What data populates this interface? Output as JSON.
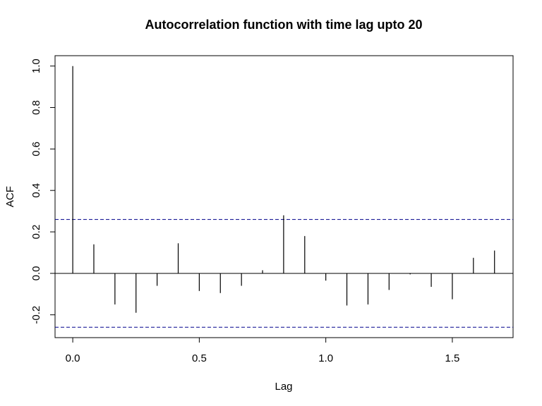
{
  "chart_data": {
    "type": "bar",
    "title": "Autocorrelation function with time lag upto 20",
    "xlabel": "Lag",
    "ylabel": "ACF",
    "xlim": [
      -0.07,
      1.74
    ],
    "ylim": [
      -0.31,
      1.05
    ],
    "x_ticks": [
      0.0,
      0.5,
      1.0,
      1.5
    ],
    "x_tick_labels": [
      "0.0",
      "0.5",
      "1.0",
      "1.5"
    ],
    "y_ticks": [
      -0.2,
      0.0,
      0.2,
      0.4,
      0.6,
      0.8,
      1.0
    ],
    "y_tick_labels": [
      "-0.2",
      "0.0",
      "0.2",
      "0.4",
      "0.6",
      "0.8",
      "1.0"
    ],
    "lags": [
      0.0,
      0.0833,
      0.1667,
      0.25,
      0.3333,
      0.4167,
      0.5,
      0.5833,
      0.6667,
      0.75,
      0.8333,
      0.9167,
      1.0,
      1.0833,
      1.1667,
      1.25,
      1.3333,
      1.4167,
      1.5,
      1.5833,
      1.6667
    ],
    "acf": [
      1.0,
      0.14,
      -0.15,
      -0.19,
      -0.06,
      0.145,
      -0.085,
      -0.095,
      -0.06,
      0.015,
      0.28,
      0.18,
      -0.035,
      -0.155,
      -0.15,
      -0.08,
      -0.005,
      -0.065,
      -0.125,
      0.075,
      0.11
    ],
    "confidence_bounds": [
      0.26,
      -0.26
    ],
    "grid": false,
    "colors": {
      "lines": "#000000",
      "bounds": "#00008b"
    }
  }
}
